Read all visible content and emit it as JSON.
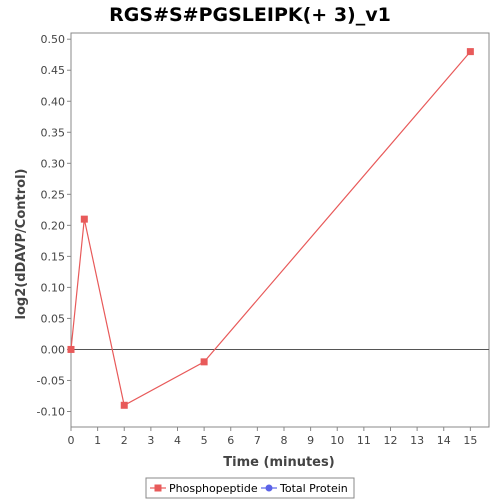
{
  "colors": {
    "phospho": "#e85a5a",
    "protein": "#5b63e8",
    "axis": "#888888",
    "zero_line": "#555555"
  },
  "chart_data": {
    "type": "line",
    "title": "RGS#S#PGSLEIPK(+ 3)_v1",
    "xlabel": "Time (minutes)",
    "ylabel": "log2(dDAVP/Control)",
    "xlim": [
      0,
      15.7
    ],
    "ylim": [
      -0.125,
      0.51
    ],
    "xticks": [
      0,
      1,
      2,
      3,
      4,
      5,
      6,
      7,
      8,
      9,
      10,
      11,
      12,
      13,
      14,
      15
    ],
    "yticks": [
      -0.1,
      -0.05,
      0.0,
      0.05,
      0.1,
      0.15,
      0.2,
      0.25,
      0.3,
      0.35,
      0.4,
      0.45,
      0.5
    ],
    "grid": false,
    "legend_position": "bottom",
    "series": [
      {
        "name": "Phosphopeptide",
        "marker": "square",
        "x": [
          0,
          0.5,
          2,
          5,
          15
        ],
        "y": [
          0.0,
          0.21,
          -0.09,
          -0.02,
          0.48
        ]
      },
      {
        "name": "Total Protein",
        "marker": "circle",
        "x": [],
        "y": []
      }
    ]
  }
}
